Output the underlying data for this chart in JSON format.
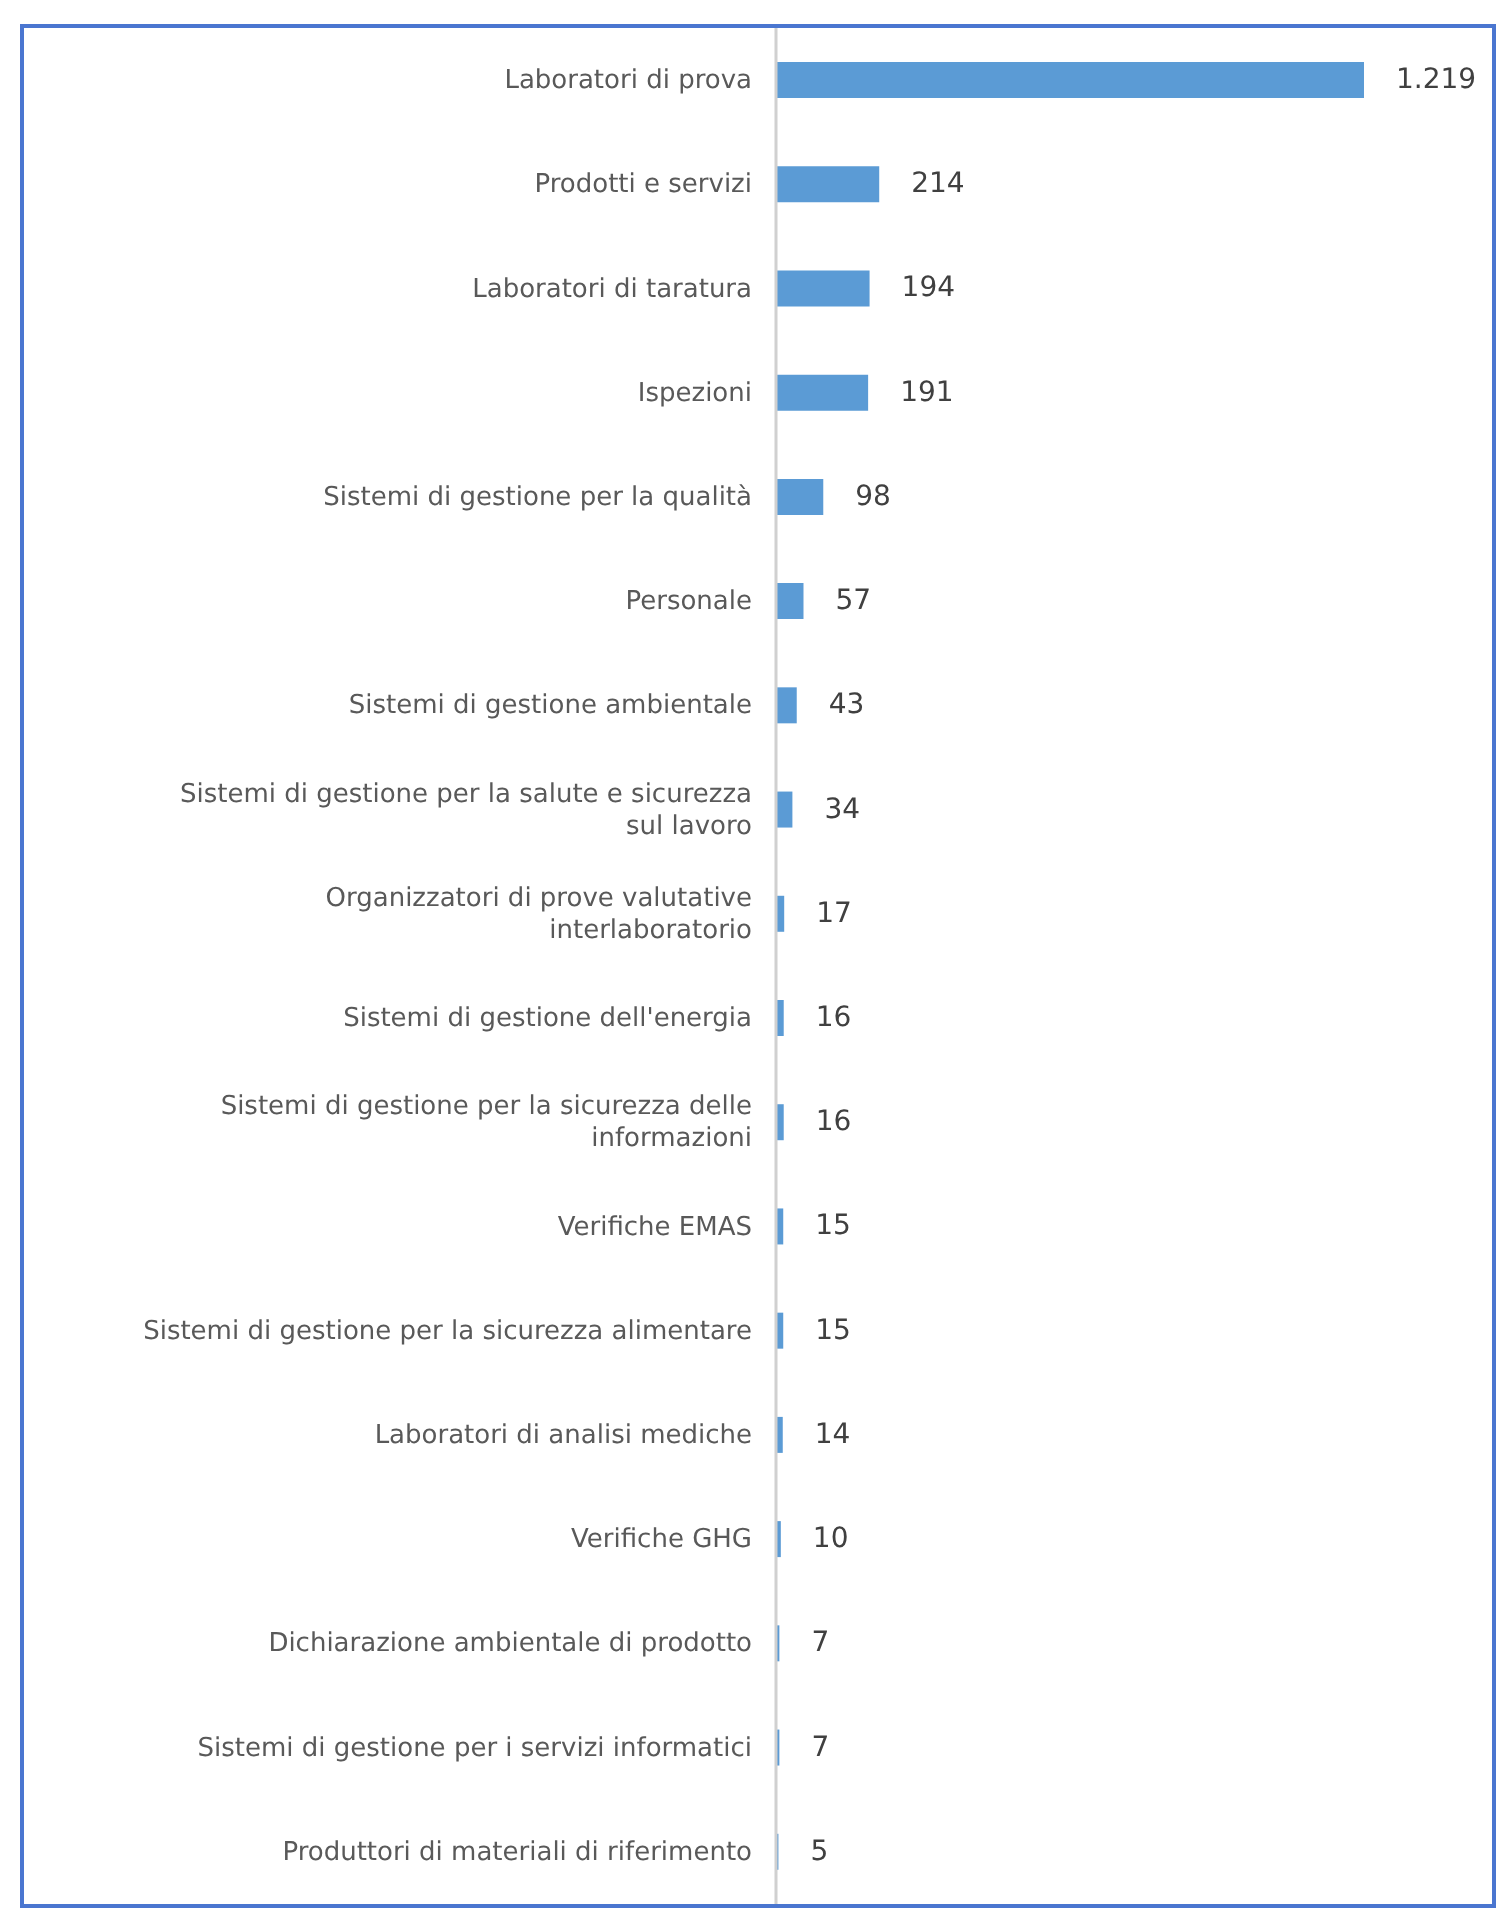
{
  "chart_data": {
    "type": "bar",
    "orientation": "horizontal",
    "tick_labels": "y",
    "categories": [
      "Laboratori di prova",
      "Prodotti e servizi",
      "Laboratori di taratura",
      "Ispezioni",
      "Sistemi di gestione per la qualità",
      "Personale",
      "Sistemi di gestione ambientale",
      "Sistemi di gestione per la salute e sicurezza sul lavoro",
      "Organizzatori di prove valutative interlaboratorio",
      "Sistemi di gestione dell'energia",
      "Sistemi di gestione per la sicurezza delle informazioni",
      "Verifiche EMAS",
      "Sistemi di gestione per la sicurezza alimentare",
      "Laboratori di analisi mediche",
      "Verifiche GHG",
      "Dichiarazione ambientale di prodotto",
      "Sistemi di gestione per i servizi informatici",
      "Produttori di materiali di riferimento"
    ],
    "values": [
      1219,
      214,
      194,
      191,
      98,
      57,
      43,
      34,
      17,
      16,
      16,
      15,
      15,
      14,
      10,
      7,
      7,
      5
    ],
    "color": "#5b9bd5",
    "value_labels": [
      "1.219",
      "214",
      "194",
      "191",
      "98",
      "57",
      "43",
      "34",
      "17",
      "16",
      "16",
      "15",
      "15",
      "14",
      "10",
      "7",
      "7",
      "5"
    ]
  }
}
